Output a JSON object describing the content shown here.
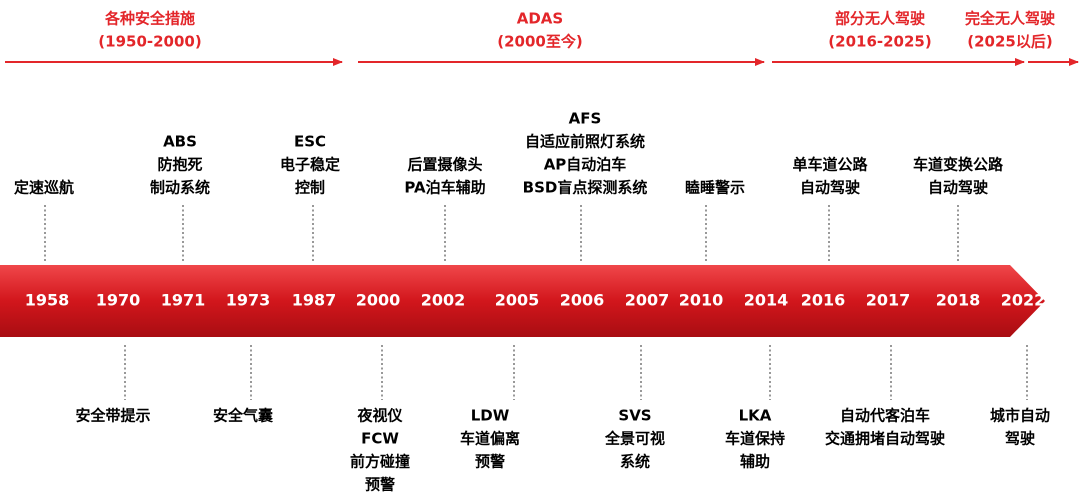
{
  "eras": [
    {
      "label": "各种安全措施",
      "period": "(1950-2000)"
    },
    {
      "label": "ADAS",
      "period": "(2000至今)"
    },
    {
      "label": "部分无人驾驶",
      "period": "(2016-2025)"
    },
    {
      "label": "完全无人驾驶",
      "period": "(2025以后)"
    }
  ],
  "years": [
    "1958",
    "1970",
    "1971",
    "1973",
    "1987",
    "2000",
    "2002",
    "2005",
    "2006",
    "2007",
    "2010",
    "2014",
    "2016",
    "2017",
    "2018",
    "2022"
  ],
  "top_events": [
    {
      "lines": [
        "定速巡航"
      ]
    },
    {
      "lines": [
        "ABS",
        "防抱死",
        "制动系统"
      ]
    },
    {
      "lines": [
        "ESC",
        "电子稳定",
        "控制"
      ]
    },
    {
      "lines": [
        "后置摄像头",
        "PA泊车辅助"
      ]
    },
    {
      "lines": [
        "AFS",
        "自适应前照灯系统",
        "AP自动泊车",
        "BSD盲点探测系统"
      ]
    },
    {
      "lines": [
        "瞌睡警示"
      ]
    },
    {
      "lines": [
        "单车道公路",
        "自动驾驶"
      ]
    },
    {
      "lines": [
        "车道变换公路",
        "自动驾驶"
      ]
    }
  ],
  "bottom_events": [
    {
      "lines": [
        "安全带提示"
      ]
    },
    {
      "lines": [
        "安全气囊"
      ]
    },
    {
      "lines": [
        "夜视仪",
        "FCW",
        "前方碰撞",
        "预警"
      ]
    },
    {
      "lines": [
        "LDW",
        "车道偏离",
        "预警"
      ]
    },
    {
      "lines": [
        "SVS",
        "全景可视",
        "系统"
      ]
    },
    {
      "lines": [
        "LKA",
        "车道保持",
        "辅助"
      ]
    },
    {
      "lines": [
        "自动代客泊车",
        "交通拥堵自动驾驶"
      ]
    },
    {
      "lines": [
        "城市自动",
        "驾驶"
      ]
    }
  ]
}
